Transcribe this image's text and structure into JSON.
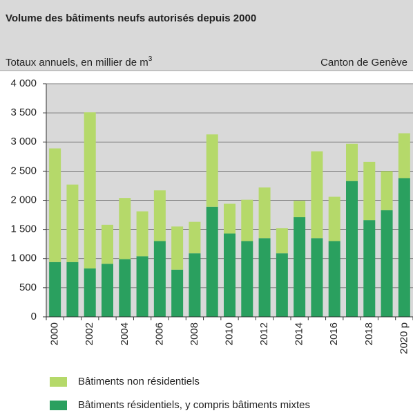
{
  "chart_data": {
    "type": "stacked_bar",
    "title": "Volume des bâtiments neufs autorisés depuis 2000",
    "subtitle": "Totaux annuels, en millier de m",
    "subtitle_superscript": "3",
    "source": "Canton de Genève",
    "categories": [
      "2000",
      null,
      "2002",
      null,
      "2004",
      null,
      "2006",
      null,
      "2008",
      null,
      "2010",
      null,
      "2012",
      null,
      "2014",
      null,
      "2016",
      null,
      "2018",
      null,
      "2020 p"
    ],
    "series": [
      {
        "name": "Bâtiments résidentiels, y compris bâtiments mixtes",
        "color": "#2aa05f",
        "values": [
          940,
          940,
          830,
          910,
          990,
          1040,
          1300,
          810,
          1090,
          1890,
          1430,
          1300,
          1350,
          1090,
          1710,
          1350,
          1300,
          2330,
          1660,
          1830,
          2380
        ]
      },
      {
        "name": "Bâtiments non résidentiels",
        "color": "#b5d96a",
        "values": [
          1950,
          1330,
          2680,
          670,
          1050,
          770,
          870,
          740,
          540,
          1240,
          510,
          710,
          870,
          430,
          280,
          1490,
          760,
          640,
          1000,
          670,
          770
        ]
      }
    ],
    "ylim": [
      0,
      4000
    ],
    "yticks": [
      0,
      500,
      {
        "value": 1000,
        "label": "1 000"
      },
      {
        "value": 1500,
        "label": "1 500"
      },
      {
        "value": 2000,
        "label": "2 000"
      },
      {
        "value": 2500,
        "label": "2 500"
      },
      {
        "value": 3000,
        "label": "3 000"
      },
      {
        "value": 3500,
        "label": "3 500"
      },
      {
        "value": 4000,
        "label": "4 000"
      }
    ],
    "grid": true,
    "plot_background": "#d9d9d9"
  }
}
